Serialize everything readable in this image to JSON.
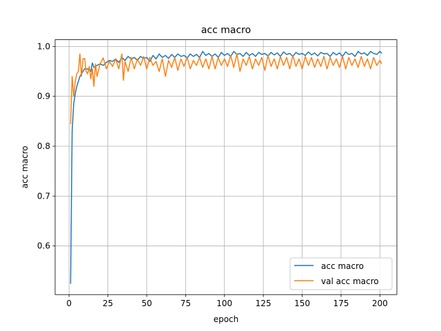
{
  "chart_data": {
    "type": "line",
    "title": "acc macro",
    "xlabel": "epoch",
    "ylabel": "acc macro",
    "xlim": [
      -8.95,
      210.95
    ],
    "ylim": [
      0.5025,
      1.0135
    ],
    "xticks": [
      0,
      25,
      50,
      75,
      100,
      125,
      150,
      175,
      200
    ],
    "yticks": [
      0.6,
      0.7,
      0.8,
      0.9,
      1.0
    ],
    "ytick_labels": [
      "0.6",
      "0.7",
      "0.8",
      "0.9",
      "1.0"
    ],
    "grid": true,
    "legend_placement": "lower-right",
    "series": [
      {
        "name": "acc macro",
        "color": "#1f77b4",
        "x": [
          1,
          2,
          3,
          4,
          5,
          6,
          7,
          8,
          9,
          10,
          12,
          14,
          15,
          16,
          18,
          20,
          22,
          24,
          26,
          28,
          30,
          32,
          34,
          36,
          38,
          40,
          42,
          44,
          46,
          48,
          50,
          52,
          54,
          56,
          58,
          60,
          62,
          64,
          66,
          68,
          70,
          72,
          74,
          76,
          78,
          80,
          82,
          84,
          86,
          88,
          90,
          92,
          94,
          96,
          98,
          100,
          102,
          104,
          106,
          108,
          110,
          112,
          114,
          116,
          118,
          120,
          122,
          124,
          126,
          128,
          130,
          132,
          134,
          136,
          138,
          140,
          142,
          144,
          146,
          148,
          150,
          152,
          154,
          156,
          158,
          160,
          162,
          164,
          166,
          168,
          170,
          172,
          174,
          176,
          178,
          180,
          182,
          184,
          186,
          188,
          190,
          192,
          194,
          196,
          198,
          200,
          201
        ],
        "y": [
          0.525,
          0.83,
          0.885,
          0.905,
          0.92,
          0.93,
          0.94,
          0.945,
          0.95,
          0.955,
          0.955,
          0.95,
          0.967,
          0.958,
          0.962,
          0.965,
          0.962,
          0.968,
          0.972,
          0.97,
          0.975,
          0.968,
          0.978,
          0.972,
          0.98,
          0.975,
          0.978,
          0.972,
          0.98,
          0.976,
          0.978,
          0.97,
          0.982,
          0.975,
          0.985,
          0.978,
          0.982,
          0.976,
          0.984,
          0.978,
          0.985,
          0.98,
          0.982,
          0.977,
          0.985,
          0.98,
          0.984,
          0.978,
          0.99,
          0.982,
          0.986,
          0.98,
          0.985,
          0.978,
          0.988,
          0.982,
          0.986,
          0.98,
          0.99,
          0.984,
          0.986,
          0.98,
          0.988,
          0.982,
          0.986,
          0.98,
          0.988,
          0.984,
          0.986,
          0.981,
          0.988,
          0.983,
          0.987,
          0.98,
          0.989,
          0.984,
          0.986,
          0.98,
          0.988,
          0.984,
          0.986,
          0.982,
          0.989,
          0.983,
          0.987,
          0.981,
          0.988,
          0.985,
          0.986,
          0.98,
          0.988,
          0.983,
          0.987,
          0.98,
          0.989,
          0.984,
          0.986,
          0.98,
          0.99,
          0.985,
          0.987,
          0.982,
          0.99,
          0.986,
          0.984,
          0.99,
          0.987
        ]
      },
      {
        "name": "val acc macro",
        "color": "#ff7f0e",
        "x": [
          1,
          2,
          3,
          4,
          5,
          6,
          7,
          8,
          9,
          10,
          11,
          12,
          13,
          14,
          15,
          16,
          17,
          18,
          20,
          22,
          24,
          26,
          28,
          30,
          32,
          34,
          35,
          36,
          38,
          40,
          42,
          44,
          46,
          48,
          50,
          52,
          54,
          56,
          58,
          60,
          62,
          64,
          66,
          68,
          70,
          72,
          74,
          76,
          78,
          80,
          82,
          84,
          86,
          88,
          90,
          92,
          94,
          96,
          98,
          100,
          102,
          104,
          106,
          108,
          110,
          112,
          114,
          116,
          118,
          120,
          122,
          124,
          126,
          128,
          130,
          132,
          134,
          136,
          138,
          140,
          142,
          144,
          146,
          148,
          150,
          152,
          154,
          156,
          158,
          160,
          162,
          164,
          166,
          168,
          170,
          172,
          174,
          176,
          178,
          180,
          182,
          184,
          186,
          188,
          190,
          192,
          194,
          196,
          198,
          200,
          201
        ],
        "y": [
          0.845,
          0.94,
          0.9,
          0.93,
          0.945,
          0.95,
          0.985,
          0.94,
          0.975,
          0.976,
          0.95,
          0.945,
          0.96,
          0.935,
          0.955,
          0.92,
          0.965,
          0.94,
          0.965,
          0.977,
          0.955,
          0.97,
          0.96,
          0.975,
          0.955,
          0.985,
          0.932,
          0.97,
          0.95,
          0.978,
          0.955,
          0.975,
          0.962,
          0.98,
          0.955,
          0.978,
          0.962,
          0.97,
          0.95,
          0.975,
          0.94,
          0.972,
          0.958,
          0.978,
          0.952,
          0.975,
          0.96,
          0.978,
          0.955,
          0.972,
          0.962,
          0.978,
          0.958,
          0.975,
          0.955,
          0.98,
          0.955,
          0.978,
          0.962,
          0.975,
          0.96,
          0.982,
          0.958,
          0.985,
          0.95,
          0.975,
          0.962,
          0.98,
          0.955,
          0.975,
          0.962,
          0.978,
          0.952,
          0.982,
          0.96,
          0.975,
          0.955,
          0.98,
          0.962,
          0.978,
          0.955,
          0.982,
          0.96,
          0.975,
          0.955,
          0.98,
          0.962,
          0.978,
          0.958,
          0.975,
          0.96,
          0.98,
          0.955,
          0.978,
          0.962,
          0.975,
          0.958,
          0.98,
          0.955,
          0.978,
          0.962,
          0.975,
          0.958,
          0.98,
          0.96,
          0.975,
          0.955,
          0.978,
          0.962,
          0.972,
          0.966
        ]
      }
    ]
  }
}
